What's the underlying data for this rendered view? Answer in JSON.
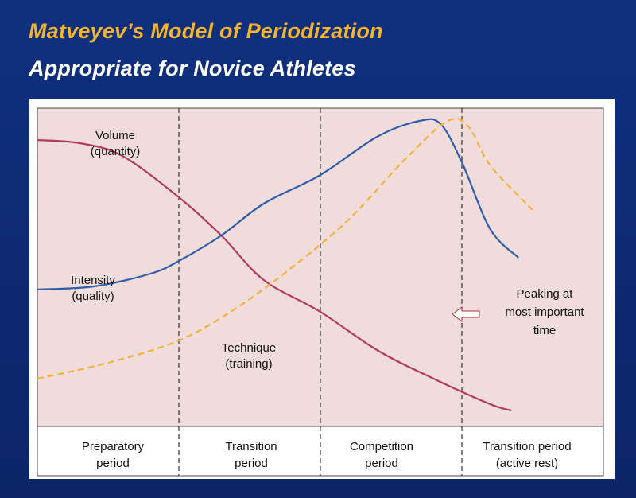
{
  "title": "Matveyev’s Model of Periodization",
  "subtitle": "Appropriate for Novice Athletes",
  "chart_data": {
    "type": "line",
    "xlabel": "",
    "ylabel": "",
    "x": [
      0,
      0.4,
      0.8,
      1.2,
      1.6,
      2.0,
      2.4,
      2.8,
      3.2,
      3.45
    ],
    "xlim": [
      0,
      4
    ],
    "ylim": [
      0,
      100
    ],
    "grid": false,
    "phases": [
      {
        "label_line1": "Preparatory",
        "label_line2": "period"
      },
      {
        "label_line1": "Transition",
        "label_line2": "period"
      },
      {
        "label_line1": "Competition",
        "label_line2": "period"
      },
      {
        "label_line1": "Transition period",
        "label_line2": "(active rest)"
      }
    ],
    "series": [
      {
        "key": "volume",
        "label_line1": "Volume",
        "label_line2": "(quantity)",
        "color": "#b03a62",
        "dash": "solid",
        "x": [
          0,
          0.3,
          0.6,
          1.0,
          1.3,
          1.6,
          2.0,
          2.4,
          2.8,
          3.2,
          3.35
        ],
        "y": [
          90,
          89,
          85,
          72,
          60,
          46,
          36,
          24,
          15,
          7,
          5
        ]
      },
      {
        "key": "intensity",
        "label_line1": "Intensity",
        "label_line2": "(quality)",
        "color": "#2f5da8",
        "dash": "solid",
        "x": [
          0,
          0.4,
          0.8,
          1.0,
          1.3,
          1.6,
          2.0,
          2.4,
          2.7,
          2.85,
          3.0,
          3.2,
          3.4
        ],
        "y": [
          43,
          44,
          48,
          52,
          60,
          70,
          79,
          91,
          96,
          95,
          83,
          62,
          53
        ]
      },
      {
        "key": "technique",
        "label_line1": "Technique",
        "label_line2": "(training)",
        "color": "#f3b23a",
        "dash": "dashed",
        "x": [
          0,
          0.5,
          1.0,
          1.4,
          1.8,
          2.2,
          2.6,
          2.9,
          3.05,
          3.2,
          3.5
        ],
        "y": [
          15,
          20,
          27,
          37,
          50,
          65,
          84,
          96,
          94,
          82,
          68
        ]
      }
    ],
    "annotations": [
      {
        "line1": "Peaking at",
        "line2": "most important",
        "line3": "time"
      }
    ]
  }
}
